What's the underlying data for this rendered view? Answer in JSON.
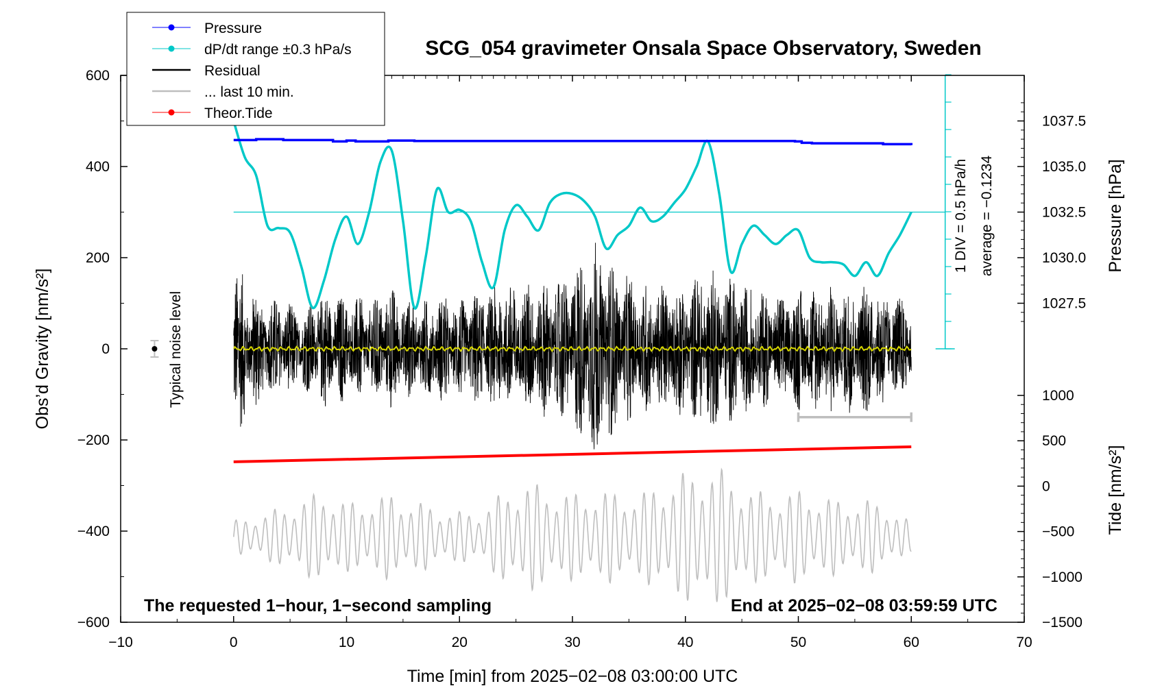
{
  "chart_data": {
    "type": "line",
    "title": "SCG_054 gravimeter Onsala Space Observatory, Sweden",
    "xlabel": "Time [min] from 2025−02−08 03:00:00 UTC",
    "xlim": [
      -10,
      70
    ],
    "x_ticks": [
      "−10",
      "0",
      "10",
      "20",
      "30",
      "40",
      "50",
      "60",
      "70"
    ],
    "left_axis": {
      "label": "Obs’d Gravity [nm/s²]",
      "ylim": [
        -600,
        600
      ],
      "ticks": [
        "600",
        "400",
        "200",
        "0",
        "−200",
        "−400",
        "−600"
      ]
    },
    "right_pressure_axis": {
      "label": "Pressure [hPa]",
      "ticks": [
        "1037.5",
        "1035.0",
        "1032.5",
        "1030.0",
        "1027.5"
      ]
    },
    "right_tide_axis": {
      "label": "Tide [nm/s²]",
      "ticks": [
        "1000",
        "500",
        "0",
        "−500",
        "−1000",
        "−1500"
      ]
    },
    "dpdt_scale": {
      "div_label": "1 DIV = 0.5 hPa/h",
      "average_label": "average = −0.1234"
    },
    "noise_label": "Typical noise level",
    "legend": [
      {
        "name": "Pressure",
        "color": "#0000ff"
      },
      {
        "name": "dP/dt range ±0.3 hPa/s",
        "color": "#00c8c8"
      },
      {
        "name": "Residual",
        "color": "#000000"
      },
      {
        "name": "... last 10 min.",
        "color": "#bebebe"
      },
      {
        "name": "Theor.Tide",
        "color": "#ff0000"
      }
    ],
    "notes": {
      "left": "The requested 1−hour, 1−second sampling",
      "right": "End at 2025−02−08 03:59:59 UTC"
    },
    "series": [
      {
        "name": "Pressure",
        "unit": "gravity-axis nm/s² (display)",
        "x": [
          0,
          1.9,
          2.0,
          4.4,
          8.8,
          10.0,
          10.8,
          13.7,
          16.0,
          49.7,
          50.3,
          51.2,
          57.5,
          60
        ],
        "values": [
          458,
          458,
          460,
          458,
          455,
          457,
          455,
          457,
          456,
          455,
          452,
          451,
          449,
          447
        ]
      },
      {
        "name": "dP/dt range",
        "unit": "gravity-axis nm/s² (display)",
        "x": [
          0,
          1,
          2,
          3,
          4,
          5,
          6,
          7,
          8,
          9,
          10,
          11,
          12,
          13,
          14,
          15,
          16,
          17,
          18,
          19,
          20,
          21,
          22,
          23,
          24,
          25,
          26,
          27,
          28,
          29,
          30,
          31,
          32,
          33,
          34,
          35,
          36,
          37,
          38,
          39,
          40,
          41,
          42,
          43,
          44,
          45,
          46,
          47,
          48,
          49,
          50,
          51,
          52,
          53,
          54,
          55,
          56,
          57,
          58,
          59,
          60
        ],
        "values": [
          500,
          420,
          380,
          270,
          265,
          255,
          180,
          90,
          150,
          240,
          290,
          230,
          300,
          410,
          435,
          280,
          90,
          200,
          350,
          300,
          305,
          280,
          190,
          135,
          260,
          315,
          290,
          260,
          320,
          340,
          340,
          325,
          290,
          220,
          250,
          270,
          310,
          280,
          290,
          320,
          350,
          400,
          455,
          340,
          170,
          230,
          270,
          250,
          230,
          250,
          260,
          200,
          190,
          190,
          185,
          160,
          190,
          160,
          210,
          250,
          300
        ]
      },
      {
        "name": "dP/dt average line",
        "unit": "gravity-axis nm/s² (display)",
        "x": [
          0,
          63
        ],
        "values": [
          300,
          300
        ]
      },
      {
        "name": "Residual",
        "unit": "nm/s²",
        "x": [
          0,
          60
        ],
        "envelope_x": [
          0,
          2,
          4,
          6,
          8,
          10,
          12,
          14,
          16,
          18,
          20,
          22,
          24,
          26,
          28,
          30,
          32,
          34,
          36,
          38,
          40,
          42,
          44,
          46,
          48,
          50,
          52,
          54,
          56,
          58,
          60
        ],
        "envelope": [
          200,
          130,
          110,
          90,
          130,
          120,
          110,
          140,
          100,
          120,
          110,
          130,
          140,
          150,
          150,
          180,
          250,
          170,
          150,
          140,
          150,
          180,
          160,
          140,
          120,
          140,
          150,
          140,
          150,
          120,
          110
        ]
      },
      {
        "name": "Residual (low-pass)",
        "unit": "nm/s²",
        "x": [
          0,
          60
        ],
        "values": [
          0,
          0
        ]
      },
      {
        "name": "... last 10 min.",
        "unit": "nm/s² (shifted)",
        "x": [
          50,
          60
        ],
        "values": [
          -150,
          -150
        ]
      },
      {
        "name": "Theor.Tide",
        "unit": "nm/s² (gravity axis)",
        "x": [
          0,
          60
        ],
        "values": [
          -248,
          -215
        ]
      },
      {
        "name": "Residual (grey, tide axis)",
        "unit": "nm/s²",
        "x": [
          0,
          60
        ],
        "envelope_x": [
          0,
          2,
          4,
          6,
          8,
          10,
          12,
          14,
          16,
          18,
          20,
          22,
          24,
          26,
          28,
          30,
          32,
          34,
          36,
          38,
          40,
          42,
          44,
          46,
          48,
          50,
          52,
          54,
          56,
          58,
          60
        ],
        "center": -560,
        "envelope": [
          180,
          240,
          320,
          420,
          520,
          380,
          420,
          480,
          400,
          330,
          280,
          300,
          520,
          620,
          540,
          480,
          520,
          500,
          480,
          620,
          720,
          820,
          700,
          520,
          480,
          520,
          460,
          400,
          420,
          340,
          160
        ]
      },
      {
        "name": "Typical noise level",
        "unit": "nm/s²",
        "x": [
          -7
        ],
        "values": [
          0
        ],
        "error": 18
      }
    ]
  }
}
